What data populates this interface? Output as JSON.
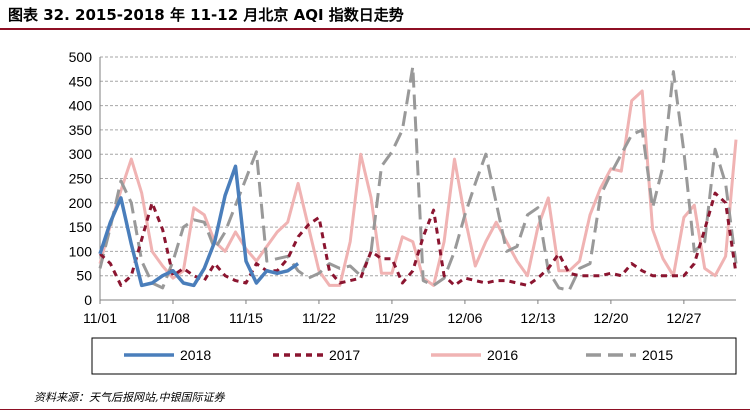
{
  "title": "图表 32. 2015-2018 年 11-12 月北京 AQI 指数日走势",
  "source": "资料来源：天气后报网站,中银国际证券",
  "colors": {
    "s2018": "#4a7ebb",
    "s2017": "#8b1530",
    "s2016": "#f0b3b3",
    "s2015": "#999999",
    "grid": "#a6a6a6",
    "rule": "#8e0f24"
  },
  "chart_data": {
    "type": "line",
    "x_labels": [
      "11/01",
      "11/08",
      "11/15",
      "11/22",
      "11/29",
      "12/06",
      "12/13",
      "12/20",
      "12/27"
    ],
    "x_label_day_index": [
      0,
      7,
      14,
      21,
      28,
      35,
      42,
      49,
      56
    ],
    "x_range_days": [
      0,
      61
    ],
    "y_ticks": [
      0,
      50,
      100,
      150,
      200,
      250,
      300,
      350,
      400,
      450,
      500
    ],
    "ylim": [
      0,
      500
    ],
    "grid": "horizontal dashed",
    "legend_position": "bottom",
    "series": [
      {
        "name": "2018",
        "style": "solid",
        "values": [
          95,
          160,
          210,
          115,
          30,
          35,
          50,
          60,
          35,
          30,
          65,
          120,
          215,
          275,
          80,
          35,
          60,
          55,
          60,
          75
        ]
      },
      {
        "name": "2017",
        "style": "short-dash",
        "values": [
          95,
          75,
          30,
          50,
          125,
          200,
          145,
          50,
          65,
          50,
          40,
          75,
          50,
          40,
          35,
          75,
          60,
          60,
          85,
          130,
          155,
          170,
          60,
          35,
          40,
          45,
          100,
          85,
          85,
          35,
          60,
          130,
          185,
          50,
          30,
          45,
          40,
          35,
          40,
          40,
          35,
          30,
          45,
          65,
          95,
          55,
          50,
          50,
          50,
          55,
          50,
          75,
          60,
          50,
          50,
          50,
          50,
          75,
          145,
          220,
          200,
          55
        ]
      },
      {
        "name": "2016",
        "style": "solid",
        "values": [
          75,
          155,
          225,
          290,
          220,
          100,
          70,
          45,
          60,
          190,
          175,
          120,
          100,
          140,
          105,
          80,
          110,
          140,
          160,
          240,
          150,
          60,
          30,
          30,
          120,
          300,
          210,
          55,
          55,
          130,
          120,
          45,
          30,
          120,
          290,
          170,
          70,
          120,
          160,
          120,
          80,
          50,
          150,
          210,
          60,
          60,
          80,
          175,
          230,
          270,
          265,
          410,
          430,
          145,
          85,
          50,
          170,
          195,
          65,
          50,
          90,
          330
        ]
      },
      {
        "name": "2015",
        "style": "long-dash",
        "values": [
          65,
          150,
          245,
          200,
          80,
          35,
          25,
          80,
          150,
          165,
          160,
          105,
          140,
          195,
          250,
          305,
          80,
          85,
          90,
          60,
          45,
          55,
          75,
          65,
          70,
          50,
          100,
          275,
          305,
          350,
          480,
          40,
          30,
          45,
          100,
          175,
          240,
          300,
          200,
          100,
          110,
          175,
          190,
          60,
          25,
          20,
          65,
          75,
          215,
          260,
          300,
          340,
          350,
          190,
          275,
          470,
          305,
          100,
          120,
          310,
          240,
          75
        ]
      }
    ]
  }
}
